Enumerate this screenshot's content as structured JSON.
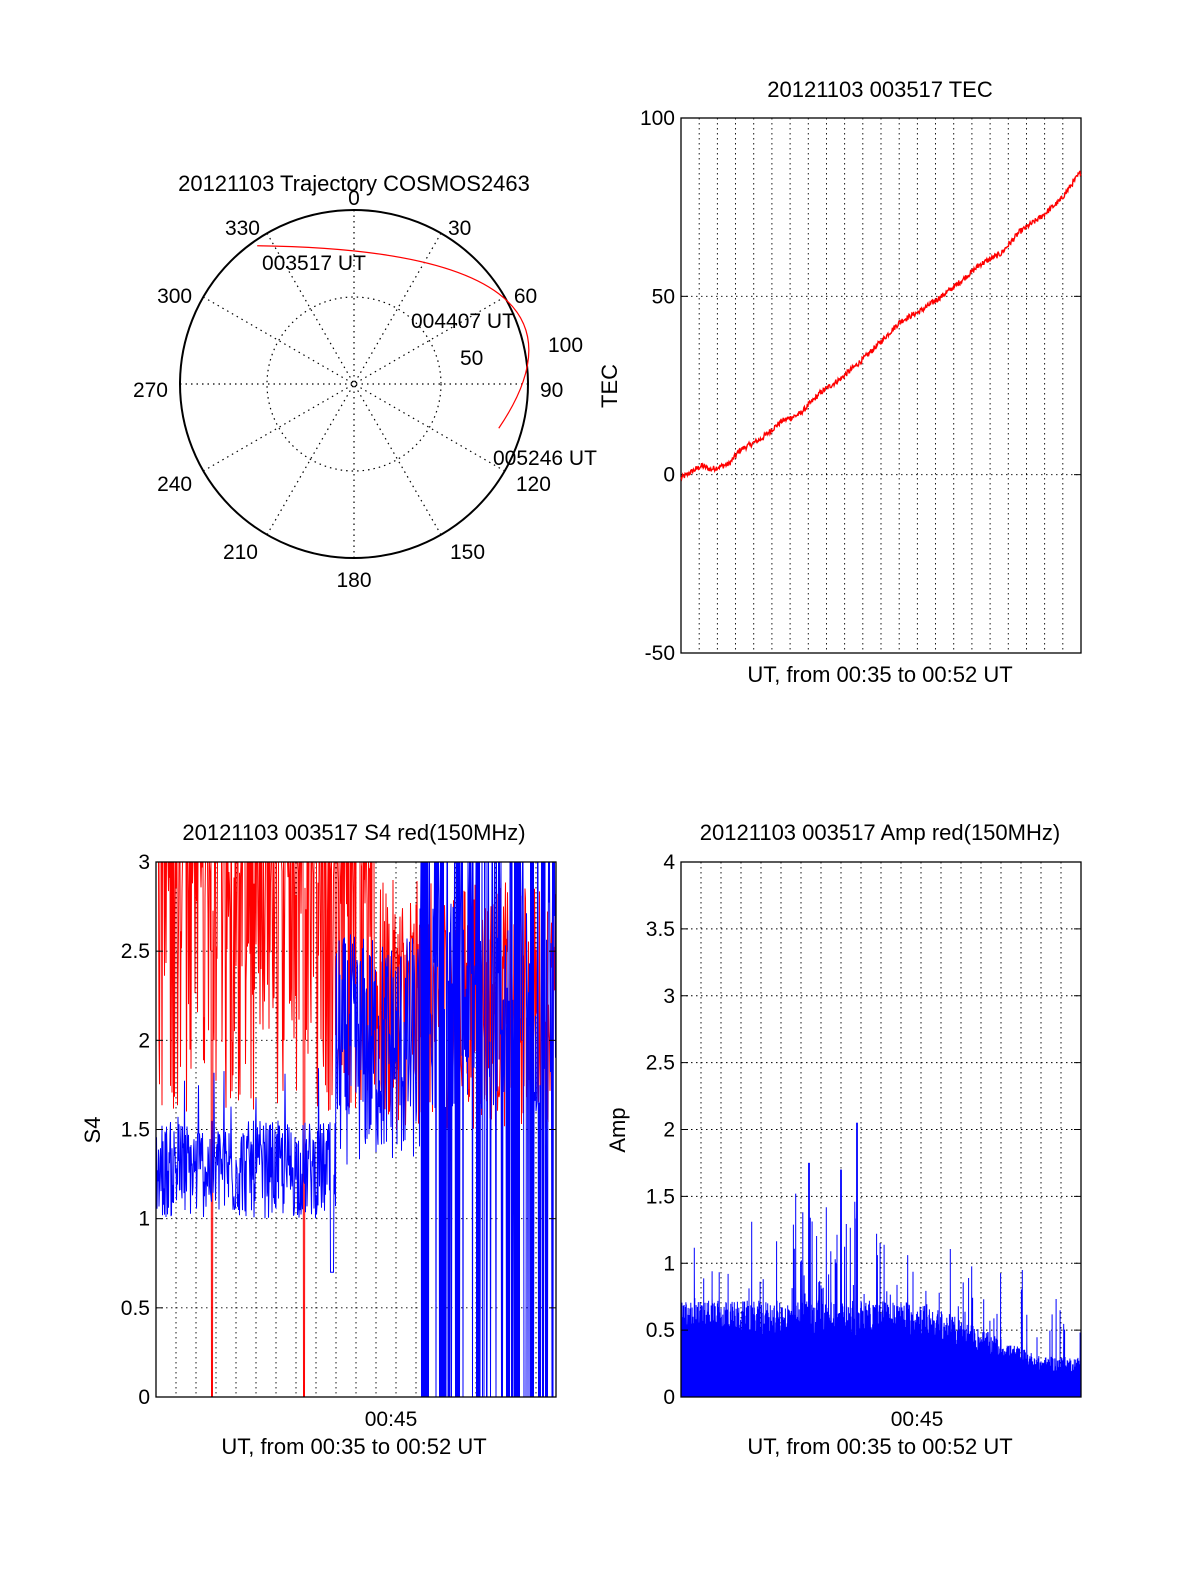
{
  "colors": {
    "red": "#ff0000",
    "blue": "#0000ff",
    "axis": "#000000",
    "background": "#ffffff"
  },
  "chart_data": [
    {
      "id": "polar",
      "type": "polar-trajectory",
      "title": "20121103 Trajectory COSMOS2463",
      "azimuth_labels": [
        "0",
        "30",
        "60",
        "90",
        "120",
        "150",
        "180",
        "210",
        "240",
        "270",
        "300",
        "330"
      ],
      "radius_labels": [
        "50",
        "100"
      ],
      "zenith_angle_rings": [
        50,
        100
      ],
      "trajectory_start": {
        "azimuth": 325,
        "zenith": 97,
        "label": "003517 UT"
      },
      "trajectory_mid": {
        "azimuth": 58,
        "zenith": 98,
        "label": "004407 UT"
      },
      "trajectory_end": {
        "azimuth": 107,
        "zenith": 87,
        "label": "005246 UT"
      },
      "series_color": "#ff0000"
    },
    {
      "id": "tec",
      "type": "line",
      "title": "20121103 003517 TEC",
      "xlabel": "UT, from 00:35 to 00:52 UT",
      "ylabel": "TEC",
      "ylim": [
        -50,
        100
      ],
      "yticks": [
        "-50",
        "0",
        "50",
        "100"
      ],
      "grid": true,
      "vertical_grid_count": 21,
      "x_start_min": 0,
      "x_end_min": 17.5,
      "series": [
        {
          "color": "#ff0000",
          "x": [
            0,
            0.9,
            1.3,
            2.1,
            2.6,
            3.5,
            4.4,
            5.2,
            6.1,
            7.0,
            7.9,
            8.7,
            9.6,
            10.5,
            11.4,
            12.2,
            13.1,
            14.0,
            14.8,
            15.7,
            16.6,
            17.5
          ],
          "values": [
            -1,
            2.5,
            1.5,
            3,
            7,
            10,
            15,
            17,
            23,
            27,
            32,
            37,
            43,
            46,
            50,
            54,
            59,
            62,
            68,
            72,
            77,
            85
          ]
        }
      ]
    },
    {
      "id": "s4",
      "type": "line",
      "title": "20121103 003517 S4 red(150MHz)",
      "xlabel": "UT, from 00:35 to 00:52 UT",
      "ylabel": "S4",
      "ylim": [
        0,
        3
      ],
      "yticks": [
        "0",
        "0.5",
        "1",
        "1.5",
        "2",
        "2.5",
        "3"
      ],
      "xtick_label": "00:45",
      "grid": true,
      "vertical_grid_count": 19,
      "series": [
        {
          "color": "#ff0000",
          "x_start": 0,
          "x_end": 1,
          "typical_range": [
            1.4,
            3.0
          ],
          "dips_to_zero_at": [
            0.14,
            0.37
          ]
        },
        {
          "color": "#0000ff",
          "x_start": 0,
          "x_end": 1,
          "typical_range": [
            0.9,
            1.6
          ],
          "late_range": [
            1.5,
            2.7
          ],
          "noisy_from": 0.66
        }
      ]
    },
    {
      "id": "amp",
      "type": "bar",
      "title": "20121103 003517 Amp red(150MHz)",
      "xlabel": "UT, from 00:35 to 00:52 UT",
      "ylabel": "Amp",
      "ylim": [
        0,
        4
      ],
      "yticks": [
        "0",
        "0.5",
        "1",
        "1.5",
        "2",
        "2.5",
        "3",
        "3.5",
        "4"
      ],
      "xtick_label": "00:45",
      "grid": true,
      "vertical_grid_count": 19,
      "peak": 2.05,
      "series": [
        {
          "color": "#0000ff",
          "x_start": 0,
          "x_end": 1,
          "base_level": 0.6,
          "late_level": 0.25
        }
      ]
    }
  ]
}
